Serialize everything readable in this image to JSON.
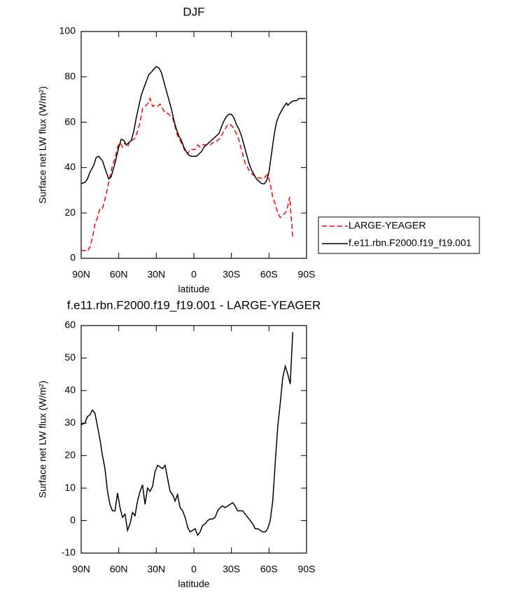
{
  "chart_data": [
    {
      "type": "line",
      "title": "DJF",
      "xlabel": "latitude",
      "ylabel": "Surface net LW flux (W/m²)",
      "xlim": [
        90,
        -90
      ],
      "xticks": [
        {
          "value": 90,
          "label": "90N"
        },
        {
          "value": 60,
          "label": "60N"
        },
        {
          "value": 30,
          "label": "30N"
        },
        0,
        {
          "value": -30,
          "label": "30S"
        },
        {
          "value": -60,
          "label": "60S"
        },
        {
          "value": -90,
          "label": "90S"
        }
      ],
      "ylim": [
        0,
        100
      ],
      "yticks": [
        0,
        20,
        40,
        60,
        80,
        100
      ],
      "legend": "right",
      "series": [
        {
          "name": "LARGE-YEAGER",
          "color": "#ff0000",
          "dash": true,
          "x": [
            90,
            87,
            85,
            83,
            81,
            79,
            77,
            75,
            73,
            71,
            69,
            67,
            65,
            63,
            61,
            59,
            57,
            55,
            53,
            51,
            49,
            47,
            45,
            43,
            41,
            39,
            37,
            35,
            33,
            31,
            29,
            27,
            25,
            23,
            21,
            19,
            17,
            15,
            13,
            11,
            9,
            7,
            5,
            3,
            1,
            -1,
            -3,
            -5,
            -7,
            -9,
            -11,
            -13,
            -15,
            -17,
            -19,
            -21,
            -23,
            -25,
            -27,
            -29,
            -31,
            -33,
            -35,
            -37,
            -39,
            -41,
            -43,
            -45,
            -47,
            -49,
            -51,
            -53,
            -55,
            -57,
            -59,
            -61,
            -63,
            -65,
            -67,
            -69,
            -71,
            -73,
            -75,
            -76.5,
            -79
          ],
          "values": [
            3.5,
            3.5,
            3,
            5,
            9,
            15,
            18,
            22,
            22,
            26,
            31,
            36,
            41,
            44,
            49,
            51,
            49,
            51,
            49,
            52,
            52,
            53,
            56,
            60,
            66,
            67,
            68,
            70.5,
            67,
            67.5,
            67,
            68,
            66,
            64,
            64,
            63,
            62,
            58,
            54,
            52,
            50,
            47,
            46,
            48,
            48,
            48,
            50,
            49,
            50,
            50,
            50,
            50,
            51,
            51,
            52,
            53,
            55,
            57,
            59,
            59,
            58,
            56,
            54,
            50,
            46,
            42,
            40,
            38,
            37,
            36,
            35.5,
            35.5,
            35,
            36,
            37,
            33,
            27,
            24,
            20,
            18,
            19,
            20,
            23,
            27,
            9
          ]
        },
        {
          "name": "f.e11.rbn.F2000.f19_f19.001",
          "color": "#000000",
          "dash": false,
          "x": [
            90,
            87,
            85,
            83,
            80,
            78,
            76,
            73,
            70,
            68,
            66,
            63,
            60,
            58,
            56,
            54,
            52,
            50,
            48,
            46,
            44,
            42,
            40,
            38,
            36,
            34,
            32,
            30,
            28,
            26,
            24,
            22,
            20,
            18,
            16,
            14,
            12,
            10,
            8,
            6,
            4,
            2,
            0,
            -2,
            -4,
            -6,
            -8,
            -10,
            -12,
            -14,
            -16,
            -18,
            -20,
            -22,
            -24,
            -26,
            -28,
            -30,
            -32,
            -34,
            -36,
            -38,
            -40,
            -42,
            -44,
            -46,
            -48,
            -50,
            -52,
            -54,
            -56,
            -58,
            -60,
            -62,
            -64,
            -66,
            -68,
            -70,
            -72,
            -74,
            -75,
            -76,
            -78,
            -80,
            -82,
            -84,
            -89
          ],
          "values": [
            33,
            33.5,
            35,
            38,
            41,
            44.5,
            45,
            43,
            38,
            35,
            36,
            42,
            49,
            52.5,
            52,
            50,
            51,
            52,
            56,
            62,
            67,
            72,
            75,
            78,
            81,
            82,
            83.5,
            84.5,
            84,
            82,
            78,
            74,
            70,
            66,
            61,
            57,
            54,
            52,
            49,
            47,
            45.5,
            45,
            45,
            45,
            46,
            47,
            49,
            50,
            51,
            52,
            53,
            54,
            55,
            58,
            60.5,
            62.5,
            63.5,
            63.5,
            62,
            59,
            57,
            54,
            50,
            46,
            42,
            39,
            37,
            35,
            34,
            33,
            32.8,
            34,
            38,
            46,
            54,
            60,
            63,
            65,
            67,
            68.5,
            67.5,
            68,
            69,
            69.5,
            69.5,
            70.5,
            70.5
          ]
        }
      ]
    },
    {
      "type": "line",
      "title": "f.e11.rbn.F2000.f19_f19.001 - LARGE-YEAGER",
      "xlabel": "latitude",
      "ylabel": "Surface net LW flux (W/m²)",
      "xlim": [
        90,
        -90
      ],
      "xticks": [
        {
          "value": 90,
          "label": "90N"
        },
        {
          "value": 60,
          "label": "60N"
        },
        {
          "value": 30,
          "label": "30N"
        },
        0,
        {
          "value": -30,
          "label": "30S"
        },
        {
          "value": -60,
          "label": "60S"
        },
        {
          "value": -90,
          "label": "90S"
        }
      ],
      "ylim": [
        -10,
        60
      ],
      "yticks": [
        -10,
        0,
        10,
        20,
        30,
        40,
        50,
        60
      ],
      "series": [
        {
          "color": "#000000",
          "dash": false,
          "x": [
            90,
            87,
            85,
            83,
            81,
            79,
            77,
            75,
            73,
            71,
            69,
            67,
            65,
            63,
            61,
            59,
            57,
            55,
            53,
            51,
            49,
            47,
            45,
            43,
            41,
            39,
            37,
            35,
            33,
            31,
            29,
            27,
            25,
            23,
            21,
            19,
            17,
            15,
            13,
            11,
            9,
            7,
            5,
            3,
            1,
            -1,
            -3,
            -5,
            -7,
            -9,
            -11,
            -13,
            -15,
            -17,
            -19,
            -21,
            -23,
            -25,
            -27,
            -29,
            -31,
            -33,
            -35,
            -37,
            -39,
            -41,
            -43,
            -45,
            -47,
            -49,
            -51,
            -53,
            -55,
            -57,
            -59,
            -61,
            -63,
            -65,
            -67,
            -69,
            -71,
            -73,
            -75,
            -77,
            -78,
            -79
          ],
          "values": [
            29.5,
            30,
            32,
            32.5,
            34,
            33,
            29,
            25,
            20,
            16,
            9,
            5,
            3,
            3,
            8.5,
            4,
            1,
            2,
            -3,
            -1,
            2.5,
            1.5,
            6,
            9,
            11,
            5,
            10,
            9,
            10.5,
            15,
            17,
            16.5,
            16,
            17,
            13,
            9,
            8,
            6,
            8,
            4,
            3,
            1,
            -2,
            -3.5,
            -3,
            -2.5,
            -4.5,
            -3.5,
            -1.5,
            -1,
            0,
            0.5,
            0.5,
            1,
            3,
            4,
            4.5,
            4,
            4.5,
            5,
            5.5,
            4.5,
            3,
            3,
            3,
            2,
            1,
            0,
            -1,
            -2.5,
            -2.5,
            -3,
            -3.5,
            -3.5,
            -2.5,
            0,
            6,
            18,
            29,
            36,
            44,
            47.5,
            45,
            42,
            50,
            58
          ]
        }
      ]
    }
  ]
}
